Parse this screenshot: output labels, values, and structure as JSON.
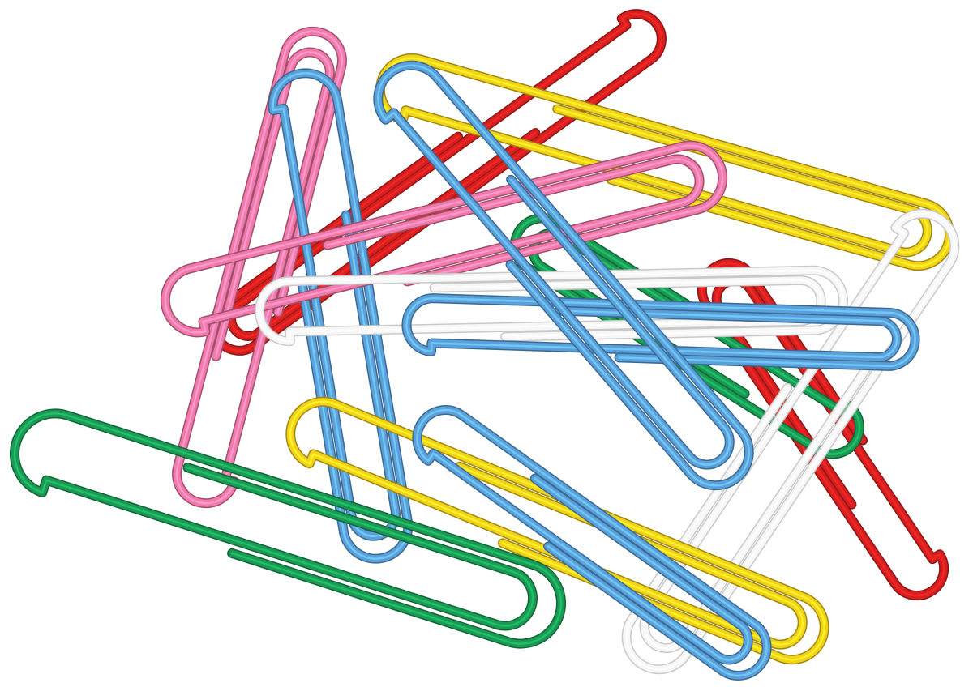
{
  "image": {
    "subject": "paperclips",
    "background_color": "#ffffff"
  },
  "palette": {
    "red": "#d61f1f",
    "pink": "#f27aa8",
    "blue": "#5aa0dc",
    "yellow": "#f2d21b",
    "green": "#1a9a54",
    "white": "#f7f7f7"
  },
  "clips": [
    {
      "name": "red-paperclip-top",
      "color": "red"
    },
    {
      "name": "red-paperclip-right",
      "color": "red"
    },
    {
      "name": "pink-paperclip-vertical",
      "color": "pink"
    },
    {
      "name": "yellow-paperclip-top",
      "color": "yellow"
    },
    {
      "name": "green-paperclip-middle",
      "color": "green"
    },
    {
      "name": "white-paperclip-right",
      "color": "white"
    },
    {
      "name": "blue-paperclip-left-vertical",
      "color": "blue"
    },
    {
      "name": "pink-paperclip-horizontal",
      "color": "pink"
    },
    {
      "name": "white-paperclip-center",
      "color": "white"
    },
    {
      "name": "blue-paperclip-horizontal",
      "color": "blue"
    },
    {
      "name": "yellow-paperclip-bottom",
      "color": "yellow"
    },
    {
      "name": "blue-paperclip-diagonal",
      "color": "blue"
    },
    {
      "name": "blue-paperclip-lower-diagonal",
      "color": "blue"
    },
    {
      "name": "green-paperclip-bottom",
      "color": "green"
    }
  ]
}
